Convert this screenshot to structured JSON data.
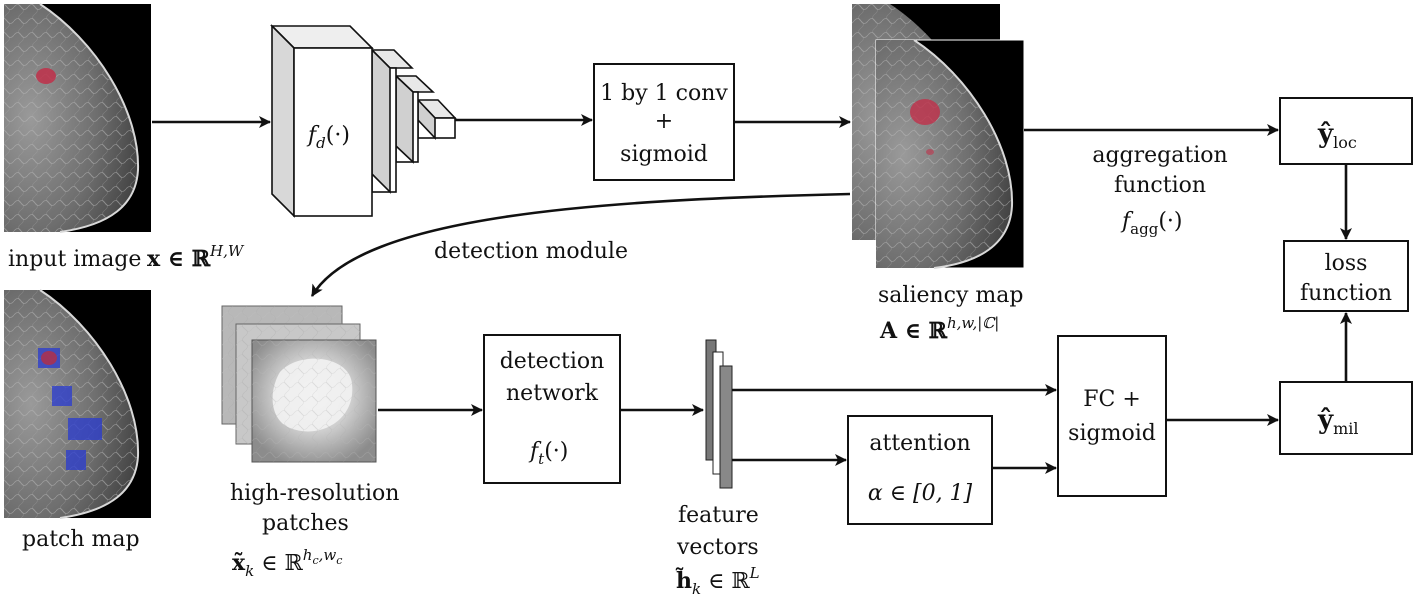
{
  "images": {
    "input_image_label": "input image",
    "input_image_math": "x ∈ ℝ",
    "input_image_sup": "H,W",
    "patch_map_label": "patch map",
    "saliency_label": "saliency map",
    "saliency_math": "A ∈ ℝ",
    "saliency_sup": "h,w,|ℂ|",
    "patches_label_1": "high-resolution",
    "patches_label_2": "patches",
    "patches_math": "x̃",
    "patches_sub": "k",
    "patches_math2": " ∈ ℝ",
    "patches_sup": "h",
    "patches_sup_sub": "c",
    "patches_sup2": ",w",
    "patches_sup_sub2": "c"
  },
  "modules": {
    "fd_label": "f",
    "fd_sub": "d",
    "fd_arg": "(·)",
    "conv_line1": "1 by 1 conv",
    "conv_line2": "+",
    "conv_line3": "sigmoid",
    "detection_module": "detection module",
    "detnet_line1": "detection",
    "detnet_line2": "network",
    "ft_label": "f",
    "ft_sub": "t",
    "ft_arg": "(·)",
    "feature_1": "feature",
    "feature_2": "vectors",
    "feature_math": "h̃",
    "feature_sub": "k",
    "feature_math2": " ∈ ℝ",
    "feature_sup": "L",
    "attention": "attention",
    "attention_math": "α ∈ [0, 1]",
    "fc_line1": "FC +",
    "fc_line2": "sigmoid",
    "agg_line1": "aggregation",
    "agg_line2": "function",
    "agg_math": "f",
    "agg_sub": "agg",
    "agg_arg": "(·)"
  },
  "outputs": {
    "yloc": "ŷ",
    "yloc_sub": "loc",
    "ymil": "ŷ",
    "ymil_sub": "mil",
    "loss_line1": "loss",
    "loss_line2": "function"
  }
}
